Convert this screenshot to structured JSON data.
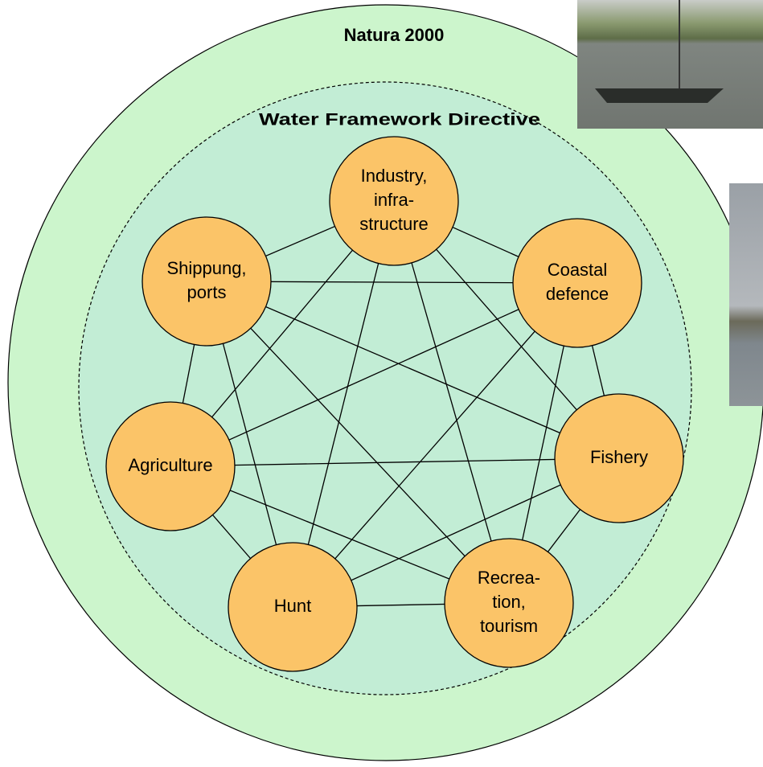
{
  "header": {
    "title": "Natura 2000",
    "subtitle": "Water Framework Directive"
  },
  "nodes": [
    {
      "lines": [
        "Industry,",
        "infra-",
        "structure"
      ]
    },
    {
      "lines": [
        "Coastal",
        "defence"
      ]
    },
    {
      "lines": [
        "Fishery"
      ]
    },
    {
      "lines": [
        "Recrea-",
        "tion,",
        "tourism"
      ]
    },
    {
      "lines": [
        "Hunt"
      ]
    },
    {
      "lines": [
        "Agriculture"
      ]
    },
    {
      "lines": [
        "Shippung,",
        "ports"
      ]
    }
  ]
}
